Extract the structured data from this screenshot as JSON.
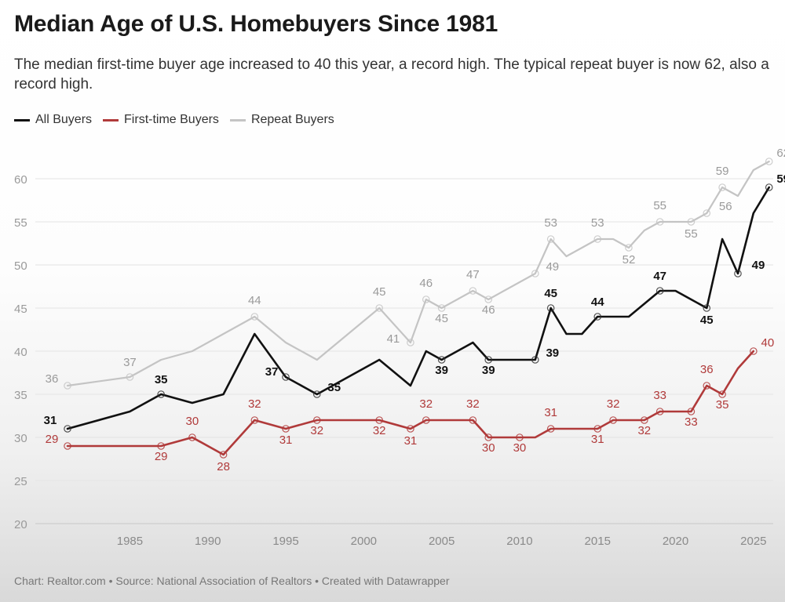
{
  "title": "Median Age of U.S. Homebuyers Since 1981",
  "subtitle": "The median first-time buyer age increased to 40 this year, a record high. The typical repeat buyer is now 62, also a record high.",
  "footer": "Chart: Realtor.com • Source: National Association of Realtors • Created with Datawrapper",
  "chart_data": {
    "type": "line",
    "title": "Median Age of U.S. Homebuyers Since 1981",
    "xlim": [
      1981,
      2025
    ],
    "ylim": [
      20,
      62
    ],
    "y_ticks": [
      20,
      25,
      30,
      35,
      40,
      45,
      50,
      55,
      60
    ],
    "x_ticks": [
      1985,
      1990,
      1995,
      2000,
      2005,
      2010,
      2015,
      2020,
      2025
    ],
    "grid": true,
    "legend_position": "top-left",
    "series": [
      {
        "name": "All Buyers",
        "color": "#111111",
        "points": [
          [
            1981,
            31
          ],
          [
            1985,
            33
          ],
          [
            1987,
            35
          ],
          [
            1989,
            34
          ],
          [
            1991,
            35
          ],
          [
            1993,
            42
          ],
          [
            1995,
            37
          ],
          [
            1997,
            35
          ],
          [
            1999,
            37
          ],
          [
            2001,
            39
          ],
          [
            2003,
            36
          ],
          [
            2004,
            40
          ],
          [
            2005,
            39
          ],
          [
            2007,
            41
          ],
          [
            2008,
            39
          ],
          [
            2011,
            39
          ],
          [
            2012,
            45
          ],
          [
            2013,
            42
          ],
          [
            2014,
            42
          ],
          [
            2015,
            44
          ],
          [
            2017,
            44
          ],
          [
            2019,
            47
          ],
          [
            2020,
            47
          ],
          [
            2022,
            45
          ],
          [
            2023,
            53
          ],
          [
            2024,
            49
          ],
          [
            2025,
            56
          ],
          [
            2026,
            59
          ]
        ],
        "labels": [
          {
            "x": 1981,
            "y": 31,
            "text": "31"
          },
          {
            "x": 1987,
            "y": 35,
            "text": "35"
          },
          {
            "x": 1995,
            "y": 37,
            "text": "37"
          },
          {
            "x": 1997,
            "y": 35,
            "text": "35"
          },
          {
            "x": 2005,
            "y": 39,
            "text": "39"
          },
          {
            "x": 2008,
            "y": 39,
            "text": "39"
          },
          {
            "x": 2011,
            "y": 39,
            "text": "39"
          },
          {
            "x": 2012,
            "y": 45,
            "text": "45"
          },
          {
            "x": 2015,
            "y": 44,
            "text": "44"
          },
          {
            "x": 2019,
            "y": 47,
            "text": "47"
          },
          {
            "x": 2022,
            "y": 45,
            "text": "45"
          },
          {
            "x": 2024,
            "y": 49,
            "text": "49"
          },
          {
            "x": 2026,
            "y": 59,
            "text": "59"
          }
        ]
      },
      {
        "name": "First-time Buyers",
        "color": "#b03a3a",
        "points": [
          [
            1981,
            29
          ],
          [
            1987,
            29
          ],
          [
            1989,
            30
          ],
          [
            1991,
            28
          ],
          [
            1993,
            32
          ],
          [
            1995,
            31
          ],
          [
            1997,
            32
          ],
          [
            2001,
            32
          ],
          [
            2003,
            31
          ],
          [
            2004,
            32
          ],
          [
            2007,
            32
          ],
          [
            2008,
            30
          ],
          [
            2011,
            30
          ],
          [
            2012,
            31
          ],
          [
            2015,
            31
          ],
          [
            2016,
            32
          ],
          [
            2018,
            32
          ],
          [
            2019,
            33
          ],
          [
            2021,
            33
          ],
          [
            2022,
            36
          ],
          [
            2023,
            35
          ],
          [
            2024,
            38
          ],
          [
            2025,
            40
          ]
        ],
        "labels": [
          {
            "x": 1981,
            "y": 29,
            "text": "29"
          },
          {
            "x": 1987,
            "y": 29,
            "text": "29"
          },
          {
            "x": 1989,
            "y": 30,
            "text": "30"
          },
          {
            "x": 1991,
            "y": 28,
            "text": "28"
          },
          {
            "x": 1993,
            "y": 32,
            "text": "32"
          },
          {
            "x": 1995,
            "y": 31,
            "text": "31"
          },
          {
            "x": 1997,
            "y": 32,
            "text": "32"
          },
          {
            "x": 2001,
            "y": 32,
            "text": "32"
          },
          {
            "x": 2003,
            "y": 31,
            "text": "31"
          },
          {
            "x": 2004,
            "y": 32,
            "text": "32"
          },
          {
            "x": 2007,
            "y": 32,
            "text": "32"
          },
          {
            "x": 2008,
            "y": 30,
            "text": "30"
          },
          {
            "x": 2010,
            "y": 30,
            "text": "30"
          },
          {
            "x": 2012,
            "y": 31,
            "text": "31"
          },
          {
            "x": 2015,
            "y": 31,
            "text": "31"
          },
          {
            "x": 2016,
            "y": 32,
            "text": "32"
          },
          {
            "x": 2018,
            "y": 32,
            "text": "32"
          },
          {
            "x": 2019,
            "y": 33,
            "text": "33"
          },
          {
            "x": 2021,
            "y": 33,
            "text": "33"
          },
          {
            "x": 2022,
            "y": 36,
            "text": "36"
          },
          {
            "x": 2023,
            "y": 35,
            "text": "35"
          },
          {
            "x": 2025,
            "y": 40,
            "text": "40"
          }
        ]
      },
      {
        "name": "Repeat Buyers",
        "color": "#c4c4c4",
        "points": [
          [
            1981,
            36
          ],
          [
            1985,
            37
          ],
          [
            1987,
            39
          ],
          [
            1989,
            40
          ],
          [
            1991,
            42
          ],
          [
            1993,
            44
          ],
          [
            1995,
            41
          ],
          [
            1997,
            39
          ],
          [
            1999,
            42
          ],
          [
            2001,
            45
          ],
          [
            2003,
            41
          ],
          [
            2004,
            46
          ],
          [
            2005,
            45
          ],
          [
            2007,
            47
          ],
          [
            2008,
            46
          ],
          [
            2011,
            49
          ],
          [
            2012,
            53
          ],
          [
            2013,
            51
          ],
          [
            2014,
            52
          ],
          [
            2015,
            53
          ],
          [
            2016,
            53
          ],
          [
            2017,
            52
          ],
          [
            2018,
            54
          ],
          [
            2019,
            55
          ],
          [
            2021,
            55
          ],
          [
            2022,
            56
          ],
          [
            2023,
            59
          ],
          [
            2024,
            58
          ],
          [
            2025,
            61
          ],
          [
            2026,
            62
          ]
        ],
        "labels": [
          {
            "x": 1981,
            "y": 36,
            "text": "36"
          },
          {
            "x": 1985,
            "y": 37,
            "text": "37"
          },
          {
            "x": 1993,
            "y": 44,
            "text": "44"
          },
          {
            "x": 2001,
            "y": 45,
            "text": "45"
          },
          {
            "x": 2003,
            "y": 41,
            "text": "41"
          },
          {
            "x": 2004,
            "y": 46,
            "text": "46"
          },
          {
            "x": 2005,
            "y": 45,
            "text": "45"
          },
          {
            "x": 2007,
            "y": 47,
            "text": "47"
          },
          {
            "x": 2008,
            "y": 46,
            "text": "46"
          },
          {
            "x": 2011,
            "y": 49,
            "text": "49"
          },
          {
            "x": 2012,
            "y": 53,
            "text": "53"
          },
          {
            "x": 2015,
            "y": 53,
            "text": "53"
          },
          {
            "x": 2017,
            "y": 52,
            "text": "52"
          },
          {
            "x": 2019,
            "y": 55,
            "text": "55"
          },
          {
            "x": 2021,
            "y": 55,
            "text": "55"
          },
          {
            "x": 2022,
            "y": 56,
            "text": "56"
          },
          {
            "x": 2023,
            "y": 59,
            "text": "59"
          },
          {
            "x": 2026,
            "y": 62,
            "text": "62"
          }
        ]
      }
    ]
  }
}
